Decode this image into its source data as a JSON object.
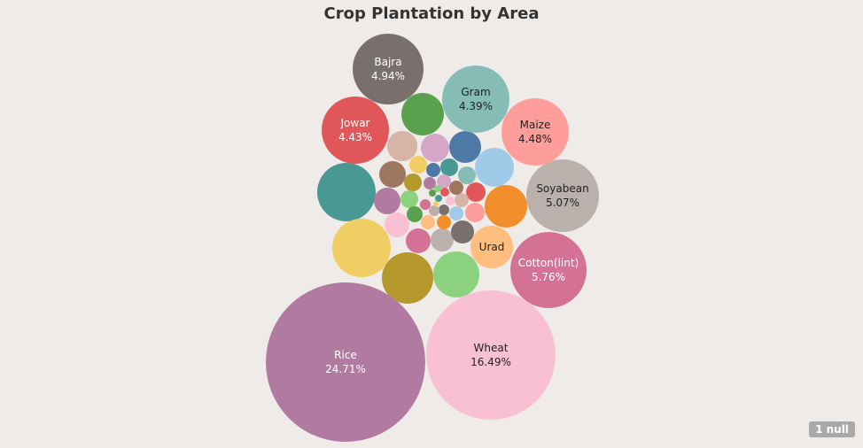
{
  "chart_data": {
    "type": "bubble",
    "title": "Crop Plantation by Area",
    "unit": "%",
    "series": [
      {
        "name": "Rice",
        "value": 24.71,
        "show_value": true,
        "color": "#b07aa1"
      },
      {
        "name": "Wheat",
        "value": 16.49,
        "show_value": true,
        "color": "#f9bfd3"
      },
      {
        "name": "Cotton(lint)",
        "value": 5.76,
        "show_value": true,
        "color": "#d37295"
      },
      {
        "name": "Soyabean",
        "value": 5.07,
        "show_value": true,
        "color": "#bab0ac"
      },
      {
        "name": "Bajra",
        "value": 4.94,
        "show_value": true,
        "color": "#79706e"
      },
      {
        "name": "Maize",
        "value": 4.48,
        "show_value": true,
        "color": "#ff9d9a"
      },
      {
        "name": "Jowar",
        "value": 4.43,
        "show_value": true,
        "color": "#e15759"
      },
      {
        "name": "Gram",
        "value": 4.39,
        "show_value": true,
        "color": "#86bcb6"
      },
      {
        "name": "Urad",
        "value": null,
        "show_value": false,
        "color": "#ffbe7d"
      }
    ]
  },
  "badge": {
    "null_label": "1 null"
  }
}
